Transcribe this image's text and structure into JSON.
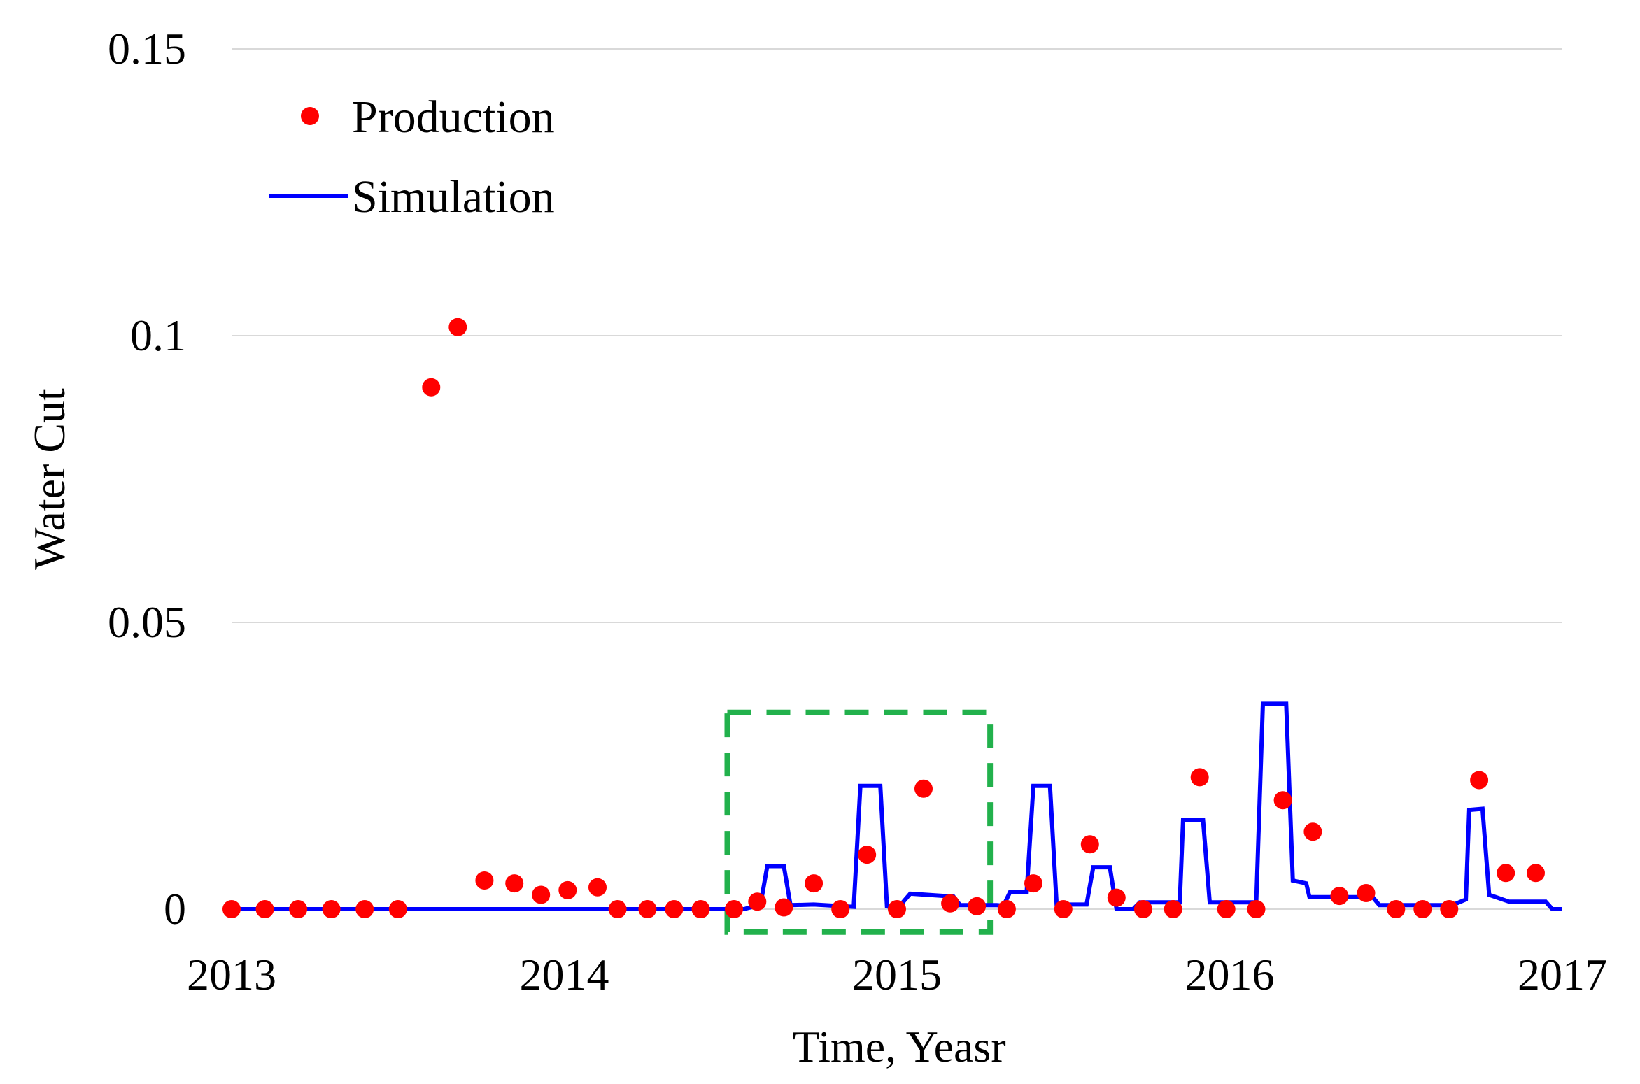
{
  "chart_data": {
    "type": "scatter",
    "title": "",
    "xlabel": "Time, Yeasr",
    "ylabel": "Water Cut",
    "xlim": [
      2013,
      2017
    ],
    "ylim": [
      0,
      0.15
    ],
    "x_ticks": [
      2013,
      2014,
      2015,
      2016,
      2017
    ],
    "x_tick_labels": [
      "2013",
      "2014",
      "2015",
      "2016",
      "2017"
    ],
    "y_ticks": [
      0,
      0.05,
      0.1,
      0.15
    ],
    "y_tick_labels": [
      "0",
      "0.05",
      "0.1",
      "0.15"
    ],
    "grid": "horizontal",
    "legend_position": "top-left",
    "series": [
      {
        "name": "Production",
        "kind": "scatter",
        "color": "#ff0000",
        "points": [
          [
            2013.0,
            0.0
          ],
          [
            2013.1,
            0.0
          ],
          [
            2013.2,
            0.0
          ],
          [
            2013.3,
            0.0
          ],
          [
            2013.4,
            0.0
          ],
          [
            2013.5,
            0.0
          ],
          [
            2013.6,
            0.091
          ],
          [
            2013.68,
            0.1015
          ],
          [
            2013.76,
            0.005
          ],
          [
            2013.85,
            0.0045
          ],
          [
            2013.93,
            0.0025
          ],
          [
            2014.01,
            0.0033
          ],
          [
            2014.1,
            0.0038
          ],
          [
            2014.16,
            0.0
          ],
          [
            2014.25,
            0.0
          ],
          [
            2014.33,
            0.0
          ],
          [
            2014.41,
            0.0
          ],
          [
            2014.51,
            0.0
          ],
          [
            2014.58,
            0.0013
          ],
          [
            2014.66,
            0.0003
          ],
          [
            2014.75,
            0.0045
          ],
          [
            2014.83,
            0.0
          ],
          [
            2014.91,
            0.0095
          ],
          [
            2015.0,
            0.0
          ],
          [
            2015.08,
            0.021
          ],
          [
            2015.16,
            0.001
          ],
          [
            2015.24,
            0.0005
          ],
          [
            2015.33,
            0.0
          ],
          [
            2015.41,
            0.0045
          ],
          [
            2015.5,
            0.0
          ],
          [
            2015.58,
            0.0113
          ],
          [
            2015.66,
            0.002
          ],
          [
            2015.74,
            0.0
          ],
          [
            2015.83,
            0.0
          ],
          [
            2015.91,
            0.023
          ],
          [
            2015.99,
            0.0
          ],
          [
            2016.08,
            0.0
          ],
          [
            2016.16,
            0.019
          ],
          [
            2016.25,
            0.0135
          ],
          [
            2016.33,
            0.0023
          ],
          [
            2016.41,
            0.0028
          ],
          [
            2016.5,
            0.0
          ],
          [
            2016.58,
            0.0
          ],
          [
            2016.66,
            0.0
          ],
          [
            2016.75,
            0.0225
          ],
          [
            2016.83,
            0.0063
          ],
          [
            2016.92,
            0.0063
          ]
        ]
      },
      {
        "name": "Simulation",
        "kind": "line",
        "color": "#0000ff",
        "points": [
          [
            2013.0,
            0.0
          ],
          [
            2014.54,
            0.0
          ],
          [
            2014.59,
            0.0008
          ],
          [
            2014.61,
            0.0075
          ],
          [
            2014.66,
            0.0075
          ],
          [
            2014.68,
            0.0007
          ],
          [
            2014.75,
            0.0008
          ],
          [
            2014.87,
            0.0004
          ],
          [
            2014.89,
            0.0215
          ],
          [
            2014.95,
            0.0215
          ],
          [
            2014.97,
            0.0005
          ],
          [
            2015.0,
            0.0
          ],
          [
            2015.04,
            0.0027
          ],
          [
            2015.17,
            0.0022
          ],
          [
            2015.19,
            0.0007
          ],
          [
            2015.3,
            0.0007
          ],
          [
            2015.32,
            0.0006
          ],
          [
            2015.34,
            0.003
          ],
          [
            2015.39,
            0.003
          ],
          [
            2015.41,
            0.0215
          ],
          [
            2015.46,
            0.0215
          ],
          [
            2015.48,
            0.0008
          ],
          [
            2015.57,
            0.0008
          ],
          [
            2015.59,
            0.0073
          ],
          [
            2015.64,
            0.0073
          ],
          [
            2015.66,
            0.0
          ],
          [
            2015.71,
            0.0
          ],
          [
            2015.73,
            0.0012
          ],
          [
            2015.85,
            0.0012
          ],
          [
            2015.86,
            0.0155
          ],
          [
            2015.92,
            0.0155
          ],
          [
            2015.94,
            0.0012
          ],
          [
            2016.08,
            0.0012
          ],
          [
            2016.1,
            0.0358
          ],
          [
            2016.17,
            0.0358
          ],
          [
            2016.19,
            0.005
          ],
          [
            2016.23,
            0.0045
          ],
          [
            2016.24,
            0.0021
          ],
          [
            2016.43,
            0.0021
          ],
          [
            2016.45,
            0.0007
          ],
          [
            2016.67,
            0.0007
          ],
          [
            2016.71,
            0.0017
          ],
          [
            2016.72,
            0.0173
          ],
          [
            2016.76,
            0.0175
          ],
          [
            2016.78,
            0.0025
          ],
          [
            2016.84,
            0.0013
          ],
          [
            2016.95,
            0.0013
          ],
          [
            2016.97,
            0.0
          ],
          [
            2017.0,
            0.0
          ]
        ]
      }
    ],
    "annotations": [
      {
        "type": "dashed-box",
        "color": "#22b14c",
        "x": [
          2014.49,
          2015.28
        ],
        "y": [
          -0.004,
          0.0343
        ]
      }
    ]
  }
}
